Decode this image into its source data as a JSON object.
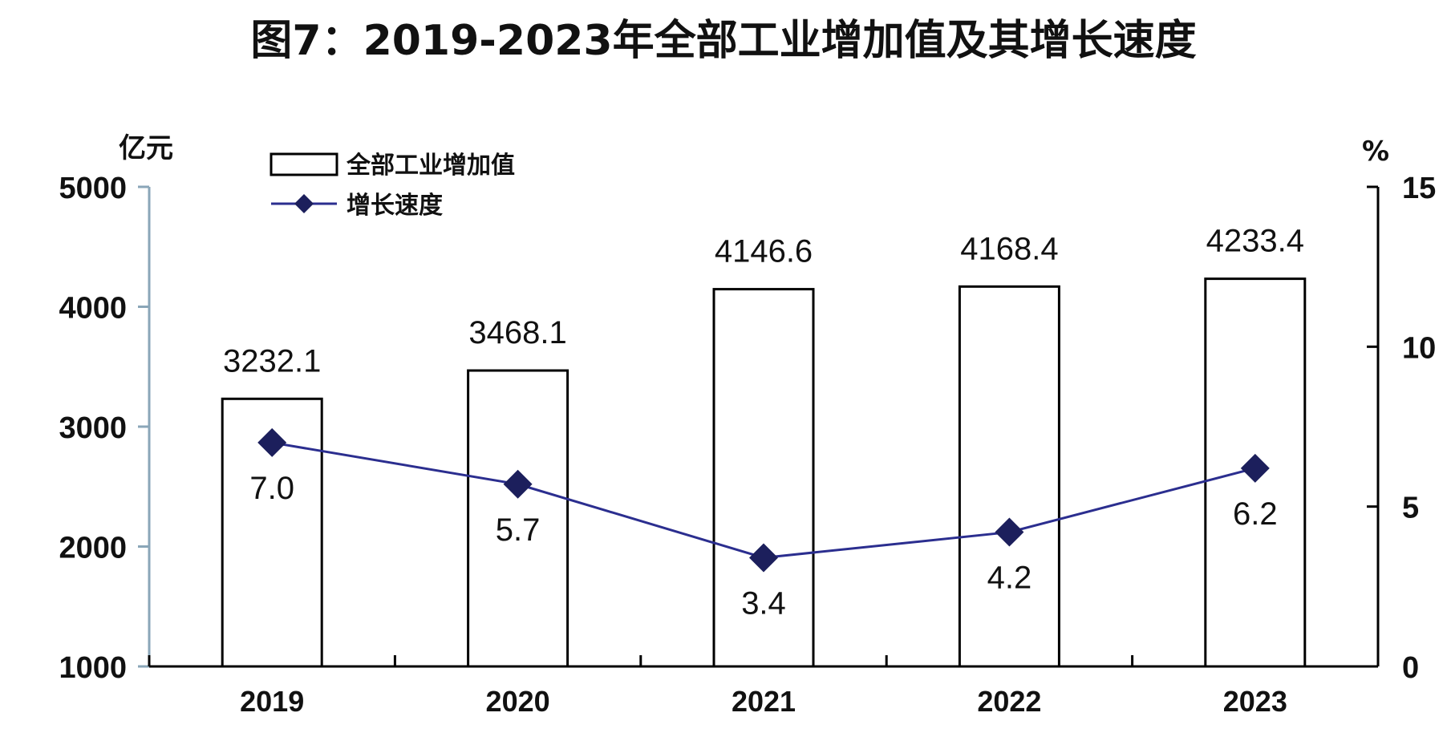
{
  "colors": {
    "bar_fill": "#ffffff",
    "bar_stroke": "#000000",
    "line": "#2b2e8f",
    "marker": "#1c1f5c"
  },
  "chart_data": {
    "type": "bar",
    "title": "图7：2019-2023年全部工业增加值及其增长速度",
    "categories": [
      "2019",
      "2020",
      "2021",
      "2022",
      "2023"
    ],
    "y_left_unit": "亿元",
    "y_right_unit": "%",
    "y_left_range": [
      1000,
      5000
    ],
    "y_left_ticks": [
      "1000",
      "2000",
      "3000",
      "4000",
      "5000"
    ],
    "y_right_range": [
      0,
      15
    ],
    "y_right_ticks": [
      "0",
      "5",
      "10",
      "15"
    ],
    "legend_position": "top-left",
    "grid": false,
    "series": [
      {
        "name": "全部工业增加值",
        "type": "bar",
        "axis": "left",
        "values": [
          3232.1,
          3468.1,
          4146.6,
          4168.4,
          4233.4
        ],
        "labels": [
          "3232.1",
          "3468.1",
          "4146.6",
          "4168.4",
          "4233.4"
        ]
      },
      {
        "name": "增长速度",
        "type": "line",
        "axis": "right",
        "marker": "diamond",
        "values": [
          7.0,
          5.7,
          3.4,
          4.2,
          6.2
        ],
        "labels": [
          "7.0",
          "5.7",
          "3.4",
          "4.2",
          "6.2"
        ]
      }
    ]
  }
}
